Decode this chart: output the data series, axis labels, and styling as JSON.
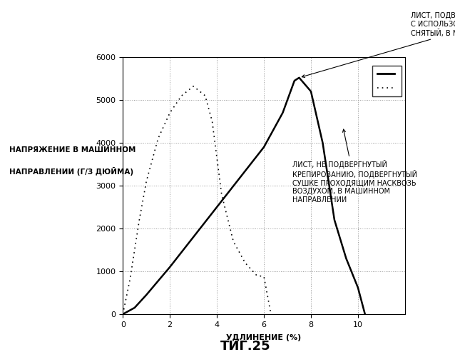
{
  "title": "ΤИГ.25",
  "xlabel": "УДЛИНЕНИЕ (%)",
  "ylabel_line1": "НАПРЯЖЕНИЕ В МАШИННОМ",
  "ylabel_line2": "НАПРАВЛЕНИИ (Г/З ДЮЙМА)",
  "xlim": [
    0,
    12
  ],
  "ylim": [
    0,
    6000
  ],
  "xticks": [
    0,
    2,
    4,
    6,
    8,
    10
  ],
  "yticks": [
    0,
    1000,
    2000,
    3000,
    4000,
    5000,
    6000
  ],
  "solid_label": "ЛИСТ, ПОДВЕРГНУТЫЙ КРЕПИРОВАНИЮ\nС ИСПОЛЬЗОВАНИЕМ  МАТЕРИАЛА,\nСНЯТЫЙ, В МАШИННОМ НАПРАВЛЕНИИ",
  "dotted_label": "ЛИСТ, НЕ ПОДВЕРГНУТЫЙ\nКРЕПИРОВАНИЮ, ПОДВЕРГНУТЫЙ\nСУШКЕ ПРОХОДЯЩИМ НАСКВОЗЬ\nВОЗДУХОМ, В МАШИННОМ\nНАПРАВЛЕНИИ",
  "solid_x": [
    0,
    0.5,
    1.0,
    2.0,
    3.0,
    4.0,
    5.0,
    6.0,
    6.8,
    7.3,
    7.5,
    8.0,
    8.5,
    9.0,
    9.5,
    10.0,
    10.3
  ],
  "solid_y": [
    0,
    150,
    450,
    1100,
    1800,
    2500,
    3200,
    3900,
    4700,
    5450,
    5520,
    5200,
    4000,
    2200,
    1300,
    620,
    0
  ],
  "dotted_x": [
    0,
    0.3,
    0.7,
    1.0,
    1.5,
    2.0,
    2.5,
    3.0,
    3.5,
    3.8,
    4.2,
    4.7,
    5.2,
    5.7,
    6.0,
    6.3
  ],
  "dotted_y": [
    0,
    800,
    2200,
    3100,
    4100,
    4700,
    5100,
    5320,
    5100,
    4500,
    2800,
    1700,
    1200,
    900,
    880,
    0
  ],
  "background": "#ffffff",
  "line_color": "#000000",
  "grid_color": "#999999"
}
